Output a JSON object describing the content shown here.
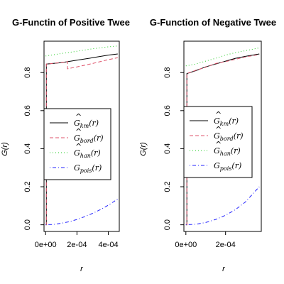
{
  "chart_data": [
    {
      "type": "line",
      "title": "G-Functin of Positive Twee",
      "xlabel": "r",
      "ylabel": "G(r)",
      "xlim": [
        -1e-05,
        0.00047
      ],
      "ylim": [
        -0.035,
        0.965
      ],
      "x_ticks": [
        {
          "value": 0,
          "label": "0e+00"
        },
        {
          "value": 0.0002,
          "label": "2e-04"
        },
        {
          "value": 0.0004,
          "label": "4e-04"
        }
      ],
      "y_ticks": [
        {
          "value": 0.0,
          "label": "0.0"
        },
        {
          "value": 0.2,
          "label": "0.2"
        },
        {
          "value": 0.4,
          "label": "0.4"
        },
        {
          "value": 0.6,
          "label": "0.6"
        },
        {
          "value": 0.8,
          "label": "0.8"
        }
      ],
      "legend_position": "center-left",
      "series": [
        {
          "name": "km",
          "color": "#000000",
          "dash": "solid",
          "x": [
            0,
            5e-06,
            5e-06,
            0.0001,
            0.0002,
            0.0003,
            0.0004,
            0.00046
          ],
          "y": [
            0,
            0,
            0.845,
            0.852,
            0.865,
            0.878,
            0.892,
            0.898
          ]
        },
        {
          "name": "bord",
          "color": "#df536b",
          "dash": "dashed",
          "x": [
            0,
            5e-06,
            5e-06,
            0.00012,
            0.00014,
            0.00014,
            0.0002,
            0.0003,
            0.0004,
            0.00046
          ],
          "y": [
            0,
            0,
            0.845,
            0.855,
            0.858,
            0.82,
            0.83,
            0.848,
            0.868,
            0.878
          ]
        },
        {
          "name": "han",
          "color": "#22cc22",
          "dash": "dotted",
          "x": [
            0,
            0.0001,
            0.0002,
            0.0003,
            0.0004,
            0.00046
          ],
          "y": [
            0.887,
            0.9,
            0.912,
            0.925,
            0.935,
            0.94
          ]
        },
        {
          "name": "pois",
          "color": "#2222ff",
          "dash": "dotdash",
          "x": [
            0,
            5e-05,
            0.0001,
            0.00015,
            0.0002,
            0.00025,
            0.0003,
            0.00035,
            0.0004,
            0.00046
          ],
          "y": [
            0,
            0.002,
            0.008,
            0.016,
            0.028,
            0.043,
            0.06,
            0.08,
            0.103,
            0.135
          ]
        }
      ]
    },
    {
      "type": "line",
      "title": "G-Function of Negative Twee",
      "xlabel": "r",
      "ylabel": "G(r)",
      "xlim": [
        -1e-05,
        0.00038
      ],
      "ylim": [
        -0.035,
        0.965
      ],
      "x_ticks": [
        {
          "value": 0,
          "label": "0e+00"
        },
        {
          "value": 0.0002,
          "label": "2e-04"
        }
      ],
      "y_ticks": [
        {
          "value": 0.0,
          "label": "0.0"
        },
        {
          "value": 0.2,
          "label": "0.2"
        },
        {
          "value": 0.4,
          "label": "0.4"
        },
        {
          "value": 0.6,
          "label": "0.6"
        },
        {
          "value": 0.8,
          "label": "0.8"
        }
      ],
      "legend_position": "center-left",
      "series": [
        {
          "name": "km",
          "color": "#000000",
          "dash": "solid",
          "x": [
            0,
            5e-06,
            5e-06,
            5e-05,
            0.0001,
            0.00015,
            0.0002,
            0.00025,
            0.0003,
            0.00037
          ],
          "y": [
            0,
            0,
            0.795,
            0.81,
            0.83,
            0.845,
            0.86,
            0.875,
            0.885,
            0.898
          ]
        },
        {
          "name": "bord",
          "color": "#df536b",
          "dash": "dashed",
          "x": [
            0,
            5e-06,
            5e-06,
            5e-05,
            0.0001,
            0.00015,
            0.0002,
            0.00025,
            0.0003,
            0.00037
          ],
          "y": [
            0,
            0,
            0.795,
            0.812,
            0.828,
            0.848,
            0.858,
            0.87,
            0.882,
            0.895
          ]
        },
        {
          "name": "han",
          "color": "#22cc22",
          "dash": "dotted",
          "x": [
            0,
            5e-05,
            0.0001,
            0.00015,
            0.0002,
            0.00025,
            0.0003,
            0.00037
          ],
          "y": [
            0.835,
            0.845,
            0.86,
            0.875,
            0.892,
            0.905,
            0.915,
            0.93
          ]
        },
        {
          "name": "pois",
          "color": "#2222ff",
          "dash": "dotdash",
          "x": [
            0,
            5e-05,
            0.0001,
            0.00015,
            0.0002,
            0.00025,
            0.0003,
            0.00037
          ],
          "y": [
            0,
            0.003,
            0.012,
            0.028,
            0.05,
            0.08,
            0.12,
            0.2
          ]
        }
      ]
    }
  ]
}
